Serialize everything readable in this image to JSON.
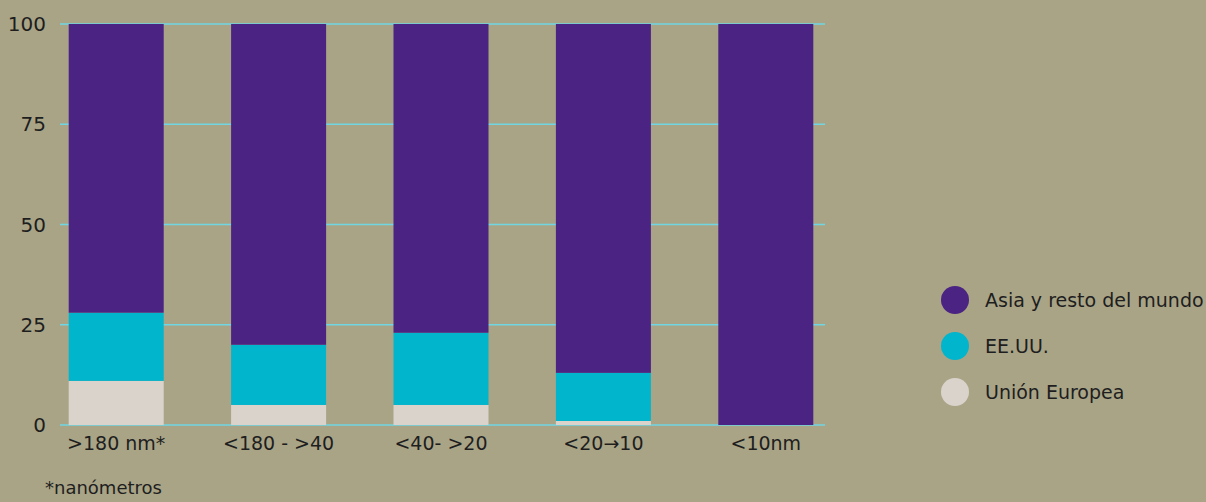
{
  "chart_data": {
    "type": "bar",
    "stacked": true,
    "categories": [
      ">180 nm*",
      "<180 - >40",
      "<40- >20",
      "<20→10",
      "<10nm"
    ],
    "series": [
      {
        "name": "Unión Europea",
        "color": "#d9d3cc",
        "values": [
          11,
          5,
          5,
          1,
          0
        ]
      },
      {
        "name": "EE.UU.",
        "color": "#00b5cc",
        "values": [
          17,
          15,
          18,
          12,
          0
        ]
      },
      {
        "name": "Asia y resto del mundo",
        "color": "#4b2382",
        "values": [
          72,
          80,
          77,
          87,
          100
        ]
      }
    ],
    "annotations": [
      "*nanómetros"
    ],
    "ylim": [
      0,
      100
    ],
    "yticks": [
      0,
      25,
      50,
      75,
      100
    ],
    "grid": true,
    "legend": "right"
  }
}
